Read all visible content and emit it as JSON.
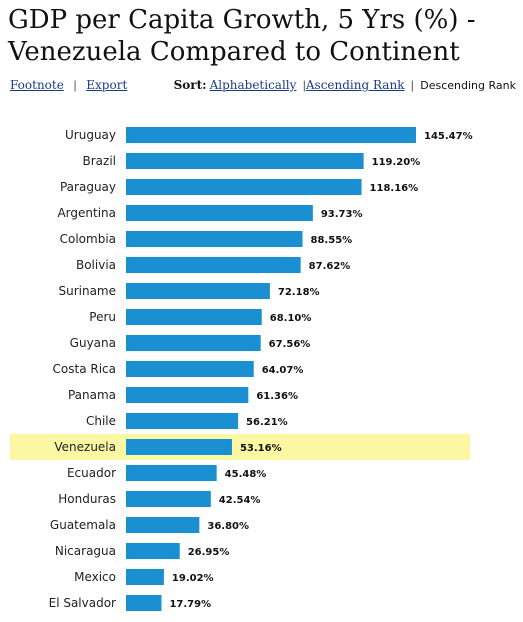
{
  "title_line1": "GDP per Capita Growth, 5 Yrs (%) -",
  "title_line2": "Venezuela Compared to Continent",
  "links": {
    "footnote": "Footnote",
    "export": "Export"
  },
  "sort": {
    "label": "Sort:",
    "alphabetically": "Alphabetically",
    "ascending": "Ascending Rank",
    "descending": "Descending Rank"
  },
  "colors": {
    "bar": "#1a8fd1",
    "highlight": "#fbf7a3"
  },
  "chart_data": {
    "type": "bar",
    "orientation": "horizontal",
    "highlight": "Venezuela",
    "xlim": [
      0,
      145.47
    ],
    "categories": [
      "Uruguay",
      "Brazil",
      "Paraguay",
      "Argentina",
      "Colombia",
      "Bolivia",
      "Suriname",
      "Peru",
      "Guyana",
      "Costa Rica",
      "Panama",
      "Chile",
      "Venezuela",
      "Ecuador",
      "Honduras",
      "Guatemala",
      "Nicaragua",
      "Mexico",
      "El Salvador"
    ],
    "values": [
      145.47,
      119.2,
      118.16,
      93.73,
      88.55,
      87.62,
      72.18,
      68.1,
      67.56,
      64.07,
      61.36,
      56.21,
      53.16,
      45.48,
      42.54,
      36.8,
      26.95,
      19.02,
      17.79
    ],
    "labels": [
      "145.47%",
      "119.20%",
      "118.16%",
      "93.73%",
      "88.55%",
      "87.62%",
      "72.18%",
      "68.10%",
      "67.56%",
      "64.07%",
      "61.36%",
      "56.21%",
      "53.16%",
      "45.48%",
      "42.54%",
      "36.80%",
      "26.95%",
      "19.02%",
      "17.79%"
    ]
  }
}
